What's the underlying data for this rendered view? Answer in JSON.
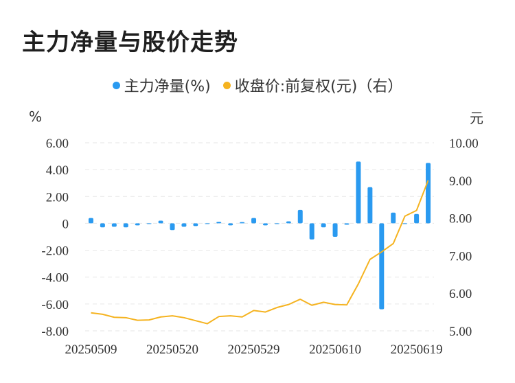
{
  "title": "主力净量与股价走势",
  "legend": {
    "items": [
      {
        "label": "主力净量(%)",
        "color": "#2a9af0"
      },
      {
        "label": "收盘价:前复权(元)（右）",
        "color": "#f5b320"
      }
    ]
  },
  "units": {
    "left": "%",
    "right": "元"
  },
  "colors": {
    "bar": "#2a9af0",
    "line": "#f5b320",
    "grid": "#e6e6e6"
  },
  "chart_data": {
    "type": "bar+line",
    "title": "主力净量与股价走势",
    "x_tick_labels": [
      "20250509",
      "20250520",
      "20250529",
      "20250610",
      "20250619"
    ],
    "x_tick_indices": [
      0,
      7,
      14,
      21,
      28
    ],
    "left_axis": {
      "unit": "%",
      "ylim": [
        -8,
        6
      ],
      "tick_labels": [
        "6.00",
        "4.00",
        "2.00",
        "0",
        "-2.00",
        "-4.00",
        "-6.00",
        "-8.00"
      ],
      "tick_values": [
        6,
        4,
        2,
        0,
        -2,
        -4,
        -6,
        -8
      ]
    },
    "right_axis": {
      "unit": "元",
      "ylim": [
        5.0,
        10.0
      ],
      "tick_labels": [
        "10.00",
        "9.00",
        "8.00",
        "7.00",
        "6.00",
        "5.00"
      ],
      "tick_values": [
        10,
        9,
        8,
        7,
        6,
        5
      ]
    },
    "grid": true,
    "series": [
      {
        "name": "主力净量(%)",
        "type": "bar",
        "axis": "left",
        "values": [
          0.4,
          -0.3,
          -0.25,
          -0.3,
          -0.15,
          -0.05,
          0.2,
          -0.5,
          -0.25,
          -0.2,
          -0.05,
          0.12,
          -0.15,
          0.1,
          0.4,
          -0.15,
          -0.05,
          0.15,
          1.0,
          -1.2,
          -0.3,
          -1.0,
          -0.1,
          4.6,
          2.7,
          -6.4,
          0.8,
          -0.05,
          0.7,
          4.5
        ]
      },
      {
        "name": "收盘价:前复权(元)（右）",
        "type": "line",
        "axis": "right",
        "values": [
          5.48,
          5.44,
          5.36,
          5.35,
          5.28,
          5.29,
          5.37,
          5.4,
          5.35,
          5.27,
          5.19,
          5.38,
          5.4,
          5.37,
          5.54,
          5.5,
          5.62,
          5.7,
          5.84,
          5.68,
          5.76,
          5.7,
          5.69,
          6.25,
          6.9,
          7.1,
          7.32,
          8.05,
          8.2,
          9.0
        ]
      }
    ]
  }
}
